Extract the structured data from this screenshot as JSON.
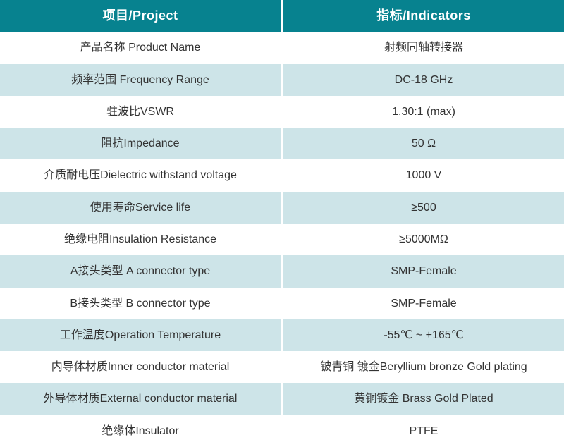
{
  "colors": {
    "header_teal": "#07828F",
    "row_alt_light_teal": "#CDE4E8",
    "row_white": "#FFFFFF",
    "text": "#333333",
    "header_text": "#FFFFFF"
  },
  "table": {
    "header": {
      "project": "项目/Project",
      "indicators": "指标/Indicators"
    },
    "rows": [
      {
        "project": "产品名称 Product Name",
        "indicator": "射频同轴转接器"
      },
      {
        "project": "频率范围 Frequency Range",
        "indicator": "DC-18 GHz"
      },
      {
        "project": "驻波比VSWR",
        "indicator": "1.30:1 (max)"
      },
      {
        "project": "阻抗Impedance",
        "indicator": "50 Ω"
      },
      {
        "project": "介质耐电压Dielectric withstand voltage",
        "indicator": "1000 V"
      },
      {
        "project": "使用寿命Service life",
        "indicator": "≥500"
      },
      {
        "project": "绝缘电阻Insulation Resistance",
        "indicator": "≥5000MΩ"
      },
      {
        "project": "A接头类型 A connector type",
        "indicator": "SMP-Female"
      },
      {
        "project": "B接头类型 B connector type",
        "indicator": "SMP-Female"
      },
      {
        "project": "工作温度Operation Temperature",
        "indicator": "-55℃ ~ +165℃"
      },
      {
        "project": "内导体材质Inner conductor material",
        "indicator": "铍青铜 镀金Beryllium bronze Gold plating"
      },
      {
        "project": "外导体材质External conductor material",
        "indicator": "黄铜镀金 Brass Gold Plated"
      },
      {
        "project": "绝缘体Insulator",
        "indicator": "PTFE"
      }
    ]
  }
}
